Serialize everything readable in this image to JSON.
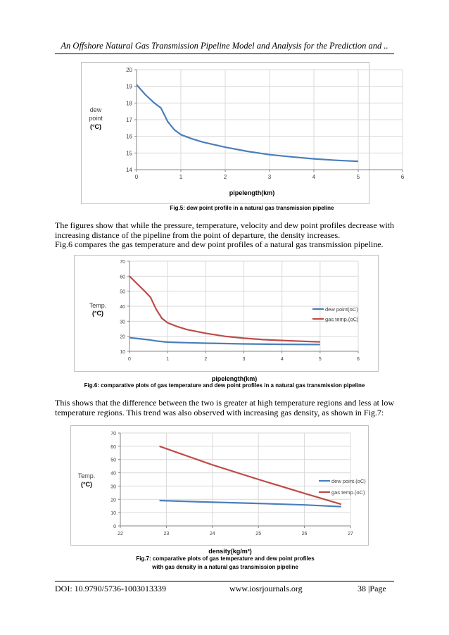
{
  "header": {
    "running_title": "An Offshore Natural Gas Transmission Pipeline Model and Analysis for the Prediction and .."
  },
  "fig5": {
    "caption": "Fig.5: dew point profile in a natural gas transmission pipeline",
    "ylabel_lines": [
      "dew",
      "point",
      "(°C)"
    ],
    "xlabel": "pipelength(km)"
  },
  "para1": {
    "line1": "The figures show that while the pressure, temperature, velocity and dew point profiles decrease with increasing distance of the pipeline from the point of departure, the density increases.",
    "line2": "Fig.6 compares the gas temperature and dew point profiles of a natural gas transmission pipeline."
  },
  "fig6": {
    "caption": "Fig.6: comparative plots of gas temperature and dew point profiles in a natural gas transmission pipeline",
    "ylabel_lines": [
      "Temp.",
      "(°C)"
    ],
    "xlabel": "pipelength(km)"
  },
  "para2": {
    "text": "This shows that the difference between the two is greater at high temperature regions and less at low temperature regions. This trend was also observed with increasing gas density, as shown in Fig.7:"
  },
  "fig7": {
    "caption_line1": "Fig.7: comparative plots of gas temperature and dew point profiles",
    "caption_line2": "with gas density in a natural gas transmission pipeline",
    "ylabel_lines": [
      "Temp.",
      "(°C)"
    ],
    "xlabel": "density(kg/m³)"
  },
  "footer": {
    "doi": "DOI: 10.9790/5736-1003013339",
    "site": "www.iosrjournals.org",
    "page": "38 |Page"
  },
  "chart_data": [
    {
      "id": "fig5",
      "type": "line",
      "xlabel": "pipelength(km)",
      "ylabel": "dew point (°C)",
      "xlim": [
        0,
        6
      ],
      "ylim": [
        14,
        20
      ],
      "xticks": [
        0,
        1,
        2,
        3,
        4,
        5,
        6
      ],
      "yticks": [
        14,
        15,
        16,
        17,
        18,
        19,
        20
      ],
      "grid": true,
      "legend": "none",
      "series": [
        {
          "color": "#4a7ebb",
          "x": [
            0,
            0.2,
            0.4,
            0.55,
            0.7,
            0.85,
            1.0,
            1.25,
            1.5,
            2.0,
            2.5,
            3.0,
            3.5,
            4.0,
            4.5,
            5.0
          ],
          "y": [
            19.1,
            18.5,
            18.0,
            17.7,
            16.9,
            16.4,
            16.1,
            15.85,
            15.65,
            15.35,
            15.1,
            14.9,
            14.77,
            14.65,
            14.56,
            14.5
          ]
        }
      ]
    },
    {
      "id": "fig6",
      "type": "line",
      "xlabel": "pipelength(km)",
      "ylabel": "Temp. (°C)",
      "xlim": [
        0,
        6
      ],
      "ylim": [
        10,
        70
      ],
      "xticks": [
        0,
        1,
        2,
        3,
        4,
        5,
        6
      ],
      "yticks": [
        10,
        20,
        30,
        40,
        50,
        60,
        70
      ],
      "grid": true,
      "legend": "right",
      "series": [
        {
          "name": "dew point(oC)",
          "color": "#4a7ebb",
          "x": [
            0,
            0.5,
            0.7,
            1.0,
            1.5,
            2.0,
            3.0,
            4.0,
            5.0
          ],
          "y": [
            19.1,
            17.7,
            16.9,
            16.1,
            15.7,
            15.4,
            14.9,
            14.65,
            14.5
          ]
        },
        {
          "name": "gas temp.(oC)",
          "color": "#be4b48",
          "x": [
            0,
            0.2,
            0.4,
            0.55,
            0.7,
            0.85,
            1.0,
            1.25,
            1.5,
            2.0,
            2.5,
            3.0,
            3.5,
            4.0,
            4.5,
            5.0
          ],
          "y": [
            60,
            55,
            50,
            46,
            38,
            32,
            29,
            26.5,
            24.5,
            22,
            20,
            18.7,
            17.8,
            17.2,
            16.7,
            16.3
          ]
        }
      ]
    },
    {
      "id": "fig7",
      "type": "line",
      "xlabel": "density(kg/m³)",
      "ylabel": "Temp. (°C)",
      "xlim": [
        22,
        27
      ],
      "ylim": [
        0,
        70
      ],
      "xticks": [
        22,
        23,
        24,
        25,
        26,
        27
      ],
      "yticks": [
        0,
        10,
        20,
        30,
        40,
        50,
        60,
        70
      ],
      "grid": true,
      "legend": "right",
      "series": [
        {
          "name": "dew point.(oC)",
          "color": "#4a7ebb",
          "x": [
            22.85,
            24.0,
            25.0,
            26.0,
            26.8
          ],
          "y": [
            19.1,
            17.8,
            16.9,
            15.8,
            14.5
          ]
        },
        {
          "name": "gas temp.(oC)",
          "color": "#be4b48",
          "x": [
            22.85,
            23.5,
            24.0,
            25.0,
            26.0,
            26.8
          ],
          "y": [
            60,
            52,
            46,
            35,
            24.5,
            16.3
          ]
        }
      ]
    }
  ]
}
